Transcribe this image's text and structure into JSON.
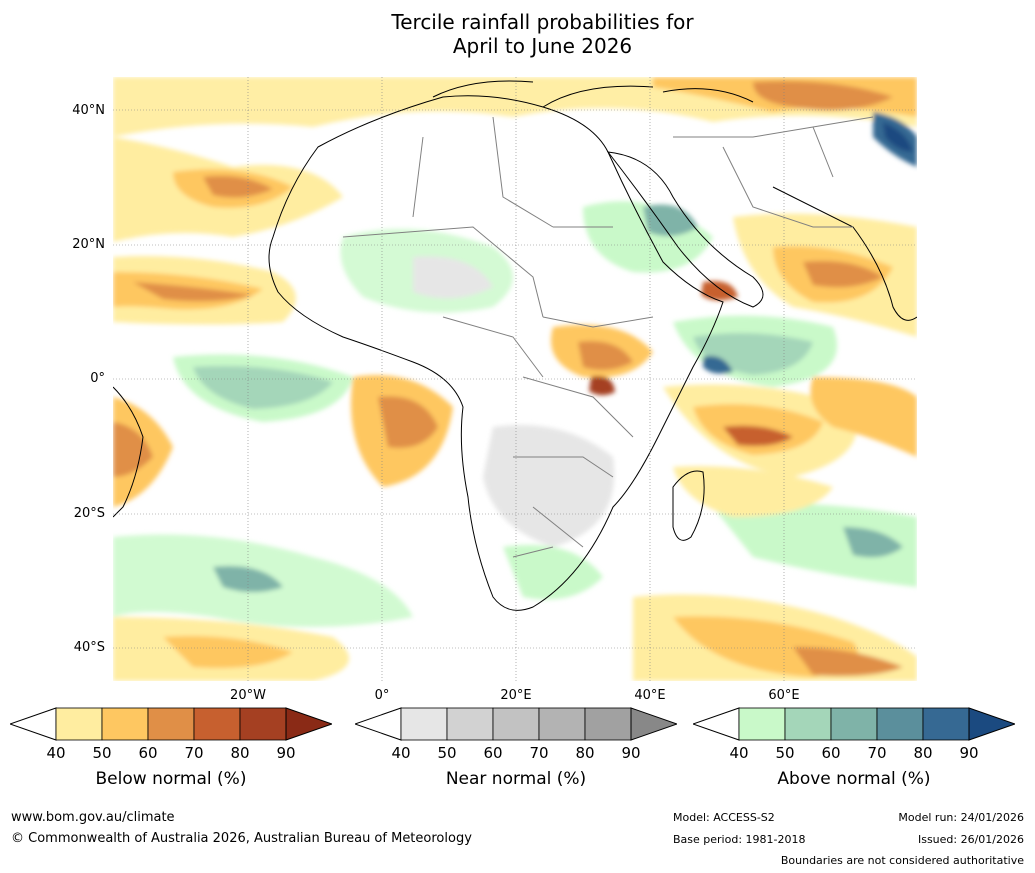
{
  "title": {
    "line1": "Tercile rainfall probabilities for",
    "line2": "April to June 2026"
  },
  "map": {
    "lat_labels": [
      "40°N",
      "20°N",
      "0°",
      "20°S",
      "40°S"
    ],
    "lon_labels": [
      "20°W",
      "0°",
      "20°E",
      "40°E",
      "60°E"
    ]
  },
  "legends": [
    {
      "name": "below",
      "title": "Below normal (%)",
      "ticks": [
        "40",
        "50",
        "60",
        "70",
        "80",
        "90"
      ],
      "colors": [
        "#ffeda0",
        "#fec761",
        "#e08f47",
        "#c7602f",
        "#a54022",
        "#8a2a16"
      ]
    },
    {
      "name": "near",
      "title": "Near normal (%)",
      "ticks": [
        "40",
        "50",
        "60",
        "70",
        "80",
        "90"
      ],
      "colors": [
        "#e6e6e6",
        "#d2d2d2",
        "#c2c2c2",
        "#b3b3b3",
        "#a1a1a1",
        "#888888"
      ]
    },
    {
      "name": "above",
      "title": "Above normal (%)",
      "ticks": [
        "40",
        "50",
        "60",
        "70",
        "80",
        "90"
      ],
      "colors": [
        "#c9f9c9",
        "#a4d6b9",
        "#7fb3a8",
        "#5b8f9c",
        "#366993",
        "#1b4a80"
      ]
    }
  ],
  "footer": {
    "website": "www.bom.gov.au/climate",
    "copyright": "© Commonwealth of Australia 2026, Australian Bureau of Meteorology",
    "model": "Model: ACCESS-S2",
    "base_period": "Base period: 1981-2018",
    "model_run": "Model run: 24/01/2026",
    "issued": "Issued: 26/01/2026",
    "disclaimer": "Boundaries are not considered authoritative"
  }
}
